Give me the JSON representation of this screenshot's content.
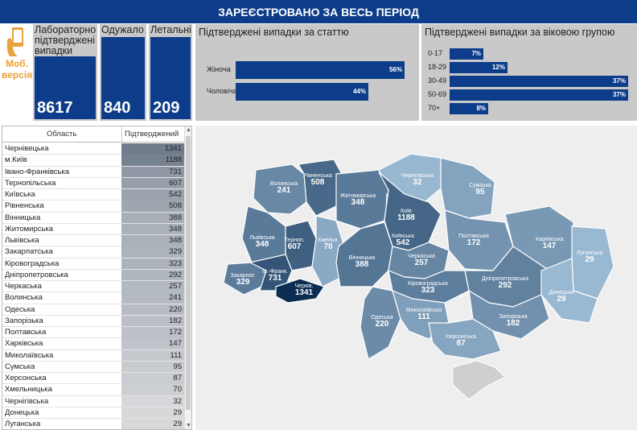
{
  "header": {
    "title": "ЗАРЕЄСТРОВАНО ЗА ВЕСЬ ПЕРІОД"
  },
  "mobile": {
    "label_line1": "Моб.",
    "label_line2": "версія",
    "icon": "hand-phone-icon",
    "color": "#e8a23b"
  },
  "kpis": [
    {
      "label": "Лабораторно підтверджені випадки",
      "value": "8617"
    },
    {
      "label": "Одужало",
      "value": "840"
    },
    {
      "label": "Летальні",
      "value": "209"
    }
  ],
  "colors": {
    "primary": "#0d3d8a",
    "panel": "#c9c9c9",
    "map_missing": "#cfcfcf"
  },
  "chart_data": [
    {
      "type": "bar",
      "title": "Підтверджені випадки за статтю",
      "categories": [
        "Жіноча",
        "Чоловіча"
      ],
      "values": [
        56,
        44
      ],
      "value_labels": [
        "56%",
        "44%"
      ]
    },
    {
      "type": "bar",
      "title": "Підтверджені випадки за віковою групою",
      "categories": [
        "0-17",
        "18-29",
        "30-49",
        "50-69",
        "70+"
      ],
      "values": [
        7,
        12,
        37,
        37,
        8
      ],
      "value_labels": [
        "7%",
        "12%",
        "37%",
        "37%",
        "8%"
      ]
    },
    {
      "type": "table",
      "columns": [
        "Область",
        "Підтверджений"
      ],
      "rows": [
        [
          "Чернівецька",
          1341
        ],
        [
          "м.Київ",
          1188
        ],
        [
          "Івано-Франківська",
          731
        ],
        [
          "Тернопільська",
          607
        ],
        [
          "Київська",
          542
        ],
        [
          "Рівненська",
          508
        ],
        [
          "Вінницька",
          388
        ],
        [
          "Житомирська",
          348
        ],
        [
          "Львівська",
          348
        ],
        [
          "Закарпатська",
          329
        ],
        [
          "Кіровоградська",
          323
        ],
        [
          "Дніпропетровська",
          292
        ],
        [
          "Черкаська",
          257
        ],
        [
          "Волинська",
          241
        ],
        [
          "Одеська",
          220
        ],
        [
          "Запорізька",
          182
        ],
        [
          "Полтавська",
          172
        ],
        [
          "Харківська",
          147
        ],
        [
          "Миколаївська",
          111
        ],
        [
          "Сумська",
          95
        ],
        [
          "Херсонська",
          87
        ],
        [
          "Хмельницька",
          70
        ],
        [
          "Чернігівська",
          32
        ],
        [
          "Донецька",
          29
        ],
        [
          "Луганська",
          29
        ]
      ]
    },
    {
      "type": "heatmap",
      "subtype": "choropleth",
      "regions": [
        {
          "name": "Волинська",
          "value": 241
        },
        {
          "name": "Рівненська",
          "value": 508
        },
        {
          "name": "Житомирська",
          "value": 348
        },
        {
          "name": "Чернігівська",
          "value": 32
        },
        {
          "name": "Сумська",
          "value": 95
        },
        {
          "name": "Київ",
          "value": 1188
        },
        {
          "name": "Київська",
          "value": 542
        },
        {
          "name": "Львівська",
          "value": 348
        },
        {
          "name": "Терноп.",
          "value": 607
        },
        {
          "name": "Хмельн.",
          "value": 70
        },
        {
          "name": "Полтавська",
          "value": 172
        },
        {
          "name": "Харківська",
          "value": 147
        },
        {
          "name": "Луганська",
          "value": 29
        },
        {
          "name": "Закарпат.",
          "value": 329
        },
        {
          "name": "Ів.-Франк.",
          "value": 731
        },
        {
          "name": "Черків.",
          "value": 1341
        },
        {
          "name": "Вінницька",
          "value": 388
        },
        {
          "name": "Черкаська",
          "value": 257
        },
        {
          "name": "Кіровоградська",
          "value": 323
        },
        {
          "name": "Дніпропетровська",
          "value": 292
        },
        {
          "name": "Донецька",
          "value": 29
        },
        {
          "name": "Одеська",
          "value": 220
        },
        {
          "name": "Миколаївська",
          "value": 111
        },
        {
          "name": "Запорізька",
          "value": 182
        },
        {
          "name": "Херсонська",
          "value": 87
        }
      ],
      "color_scale": [
        "#b8d6ee",
        "#0b2d52"
      ]
    }
  ]
}
